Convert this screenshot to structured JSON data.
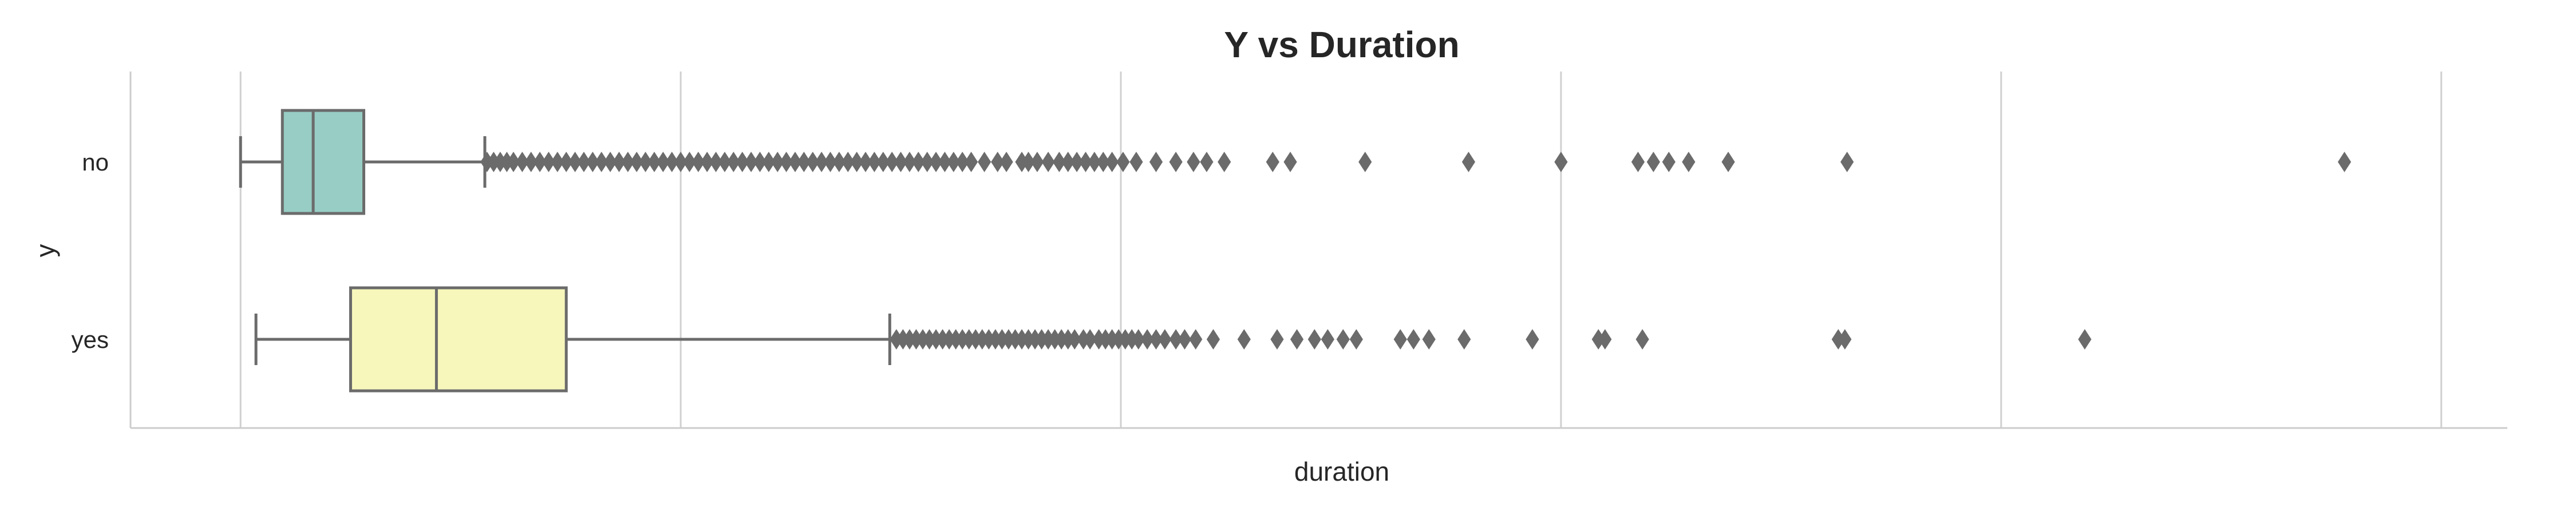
{
  "chart_data": {
    "type": "boxplot",
    "orientation": "horizontal",
    "title": "Y vs Duration",
    "xlabel": "duration",
    "ylabel": "y",
    "categories": [
      "no",
      "yes"
    ],
    "xlim": [
      -250,
      5150
    ],
    "x_gridlines": [
      0,
      1000,
      2000,
      3000,
      4000,
      5000
    ],
    "x_tick_labels_visible": false,
    "grid": "vertical",
    "series": [
      {
        "category": "no",
        "color": "#97cdc4",
        "whisker_low": 0,
        "q1": 95,
        "median": 165,
        "q3": 280,
        "whisker_high": 555,
        "outliers": [
          560,
          575,
          590,
          605,
          620,
          640,
          660,
          680,
          700,
          720,
          740,
          760,
          780,
          800,
          820,
          840,
          860,
          880,
          900,
          920,
          940,
          960,
          980,
          1000,
          1020,
          1040,
          1060,
          1080,
          1100,
          1120,
          1140,
          1160,
          1180,
          1200,
          1220,
          1240,
          1260,
          1280,
          1300,
          1320,
          1340,
          1360,
          1380,
          1400,
          1420,
          1440,
          1460,
          1480,
          1500,
          1520,
          1540,
          1560,
          1580,
          1600,
          1620,
          1640,
          1660,
          1690,
          1720,
          1740,
          1775,
          1790,
          1810,
          1835,
          1860,
          1880,
          1900,
          1920,
          1940,
          1960,
          1980,
          2005,
          2035,
          2080,
          2125,
          2165,
          2195,
          2235,
          2345,
          2385,
          2555,
          2790,
          3000,
          3175,
          3210,
          3245,
          3290,
          3380,
          3650,
          4780
        ]
      },
      {
        "category": "yes",
        "color": "#f7f7bc",
        "whisker_low": 35,
        "q1": 250,
        "median": 445,
        "q3": 740,
        "whisker_high": 1475,
        "outliers": [
          1490,
          1505,
          1520,
          1535,
          1550,
          1565,
          1580,
          1595,
          1610,
          1625,
          1640,
          1655,
          1670,
          1685,
          1700,
          1715,
          1730,
          1745,
          1760,
          1775,
          1790,
          1805,
          1820,
          1835,
          1850,
          1865,
          1880,
          1895,
          1915,
          1930,
          1950,
          1965,
          1980,
          1995,
          2010,
          2025,
          2040,
          2060,
          2080,
          2100,
          2125,
          2145,
          2170,
          2210,
          2280,
          2355,
          2400,
          2440,
          2470,
          2505,
          2535,
          2635,
          2665,
          2700,
          2780,
          2935,
          3085,
          3100,
          3185,
          3630,
          3645,
          4190
        ]
      }
    ]
  }
}
